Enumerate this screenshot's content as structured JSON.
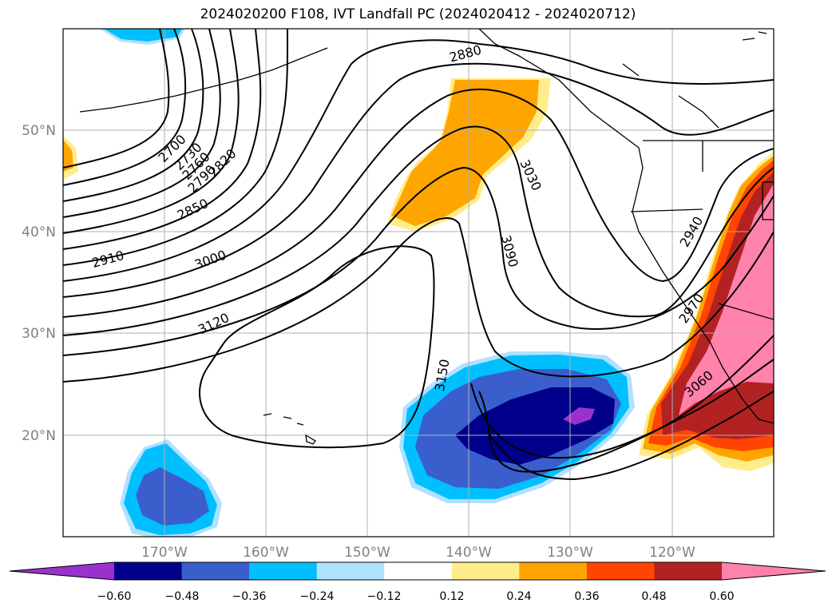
{
  "title": "2024020200 F108, IVT Landfall PC (2024020412 - 2024020712)",
  "map": {
    "lat_labels": [
      "50°N",
      "40°N",
      "30°N",
      "20°N"
    ],
    "lon_labels": [
      "170°W",
      "160°W",
      "150°W",
      "140°W",
      "130°W",
      "120°W"
    ],
    "label_color": "#808080",
    "contour_labels": [
      "2700",
      "2730",
      "2760",
      "2790",
      "2820",
      "2850",
      "2880",
      "2910",
      "2940",
      "2970",
      "3000",
      "3030",
      "3060",
      "3090",
      "3120",
      "3150"
    ]
  },
  "colorbar": {
    "ticks": [
      "−0.60",
      "−0.48",
      "−0.36",
      "−0.24",
      "−0.12",
      "0.12",
      "0.24",
      "0.36",
      "0.48",
      "0.60"
    ],
    "colors": [
      "#9932cc",
      "#00008b",
      "#3a5fcd",
      "#00bfff",
      "#b0e2ff",
      "#ffffff",
      "#ffec8b",
      "#ffa500",
      "#ff4500",
      "#b22222",
      "#ff82ab"
    ]
  }
}
